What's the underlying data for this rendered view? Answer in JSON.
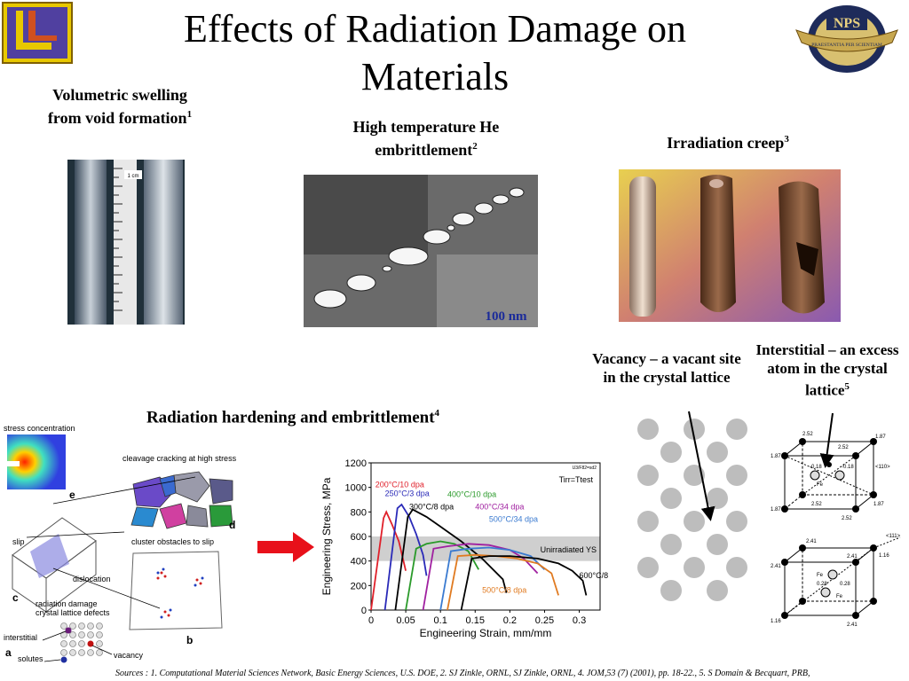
{
  "title": "Effects of Radiation Damage on Materials",
  "captions": {
    "swelling": "Volumetric swelling from void formation",
    "swelling_ref": "1",
    "he_embrittlement": "High temperature He embrittlement",
    "he_ref": "2",
    "creep": "Irradiation creep",
    "creep_ref": "3",
    "hardening": "Radiation hardening and embrittlement",
    "hardening_ref": "4",
    "vacancy": "Vacancy – a vacant site in the crystal lattice",
    "interstitial": "Interstitial – an excess atom in the crystal lattice",
    "interstitial_ref": "5"
  },
  "images": {
    "swelling_scale": "1 cm",
    "tem_scale": "100 nm"
  },
  "logos": {
    "nps_text": "NPS",
    "nps_motto": "PRAESTANTIA PER SCIENTIAM"
  },
  "schematic": {
    "stress_concentration": "stress concentration",
    "cleavage": "cleavage cracking at high stress",
    "slip": "slip",
    "cluster": "cluster obstacles to slip",
    "dislocation": "dislocation",
    "defects": "radiation damage crystal lattice defects",
    "interstitial": "interstitial",
    "solutes": "solutes",
    "vacancy": "vacancy",
    "labels": [
      "a",
      "b",
      "c",
      "d",
      "e"
    ]
  },
  "lattice_labels": {
    "top": [
      "2.52",
      "1.87",
      "2.52",
      "1.87",
      "-0.18",
      "Fe",
      "-0.18",
      "<110>",
      "1.87",
      "2.52",
      "1.87",
      "2.52"
    ],
    "bottom_dir": "<111>",
    "bottom": [
      "2.41",
      "2.41",
      "1.16",
      "Fe",
      "0.28",
      "0.28",
      "Fe",
      "2.41",
      "1.16",
      "2.41"
    ]
  },
  "chart_data": {
    "type": "line",
    "ylabel": "Engineering Stress, MPa",
    "xlabel": "Engineering Strain, mm/mm",
    "ylim": [
      0,
      1200
    ],
    "xlim": [
      0,
      0.33
    ],
    "yticks": [
      0,
      200,
      400,
      600,
      800,
      1000,
      1200
    ],
    "xticks": [
      "0",
      "0.05",
      "0.1",
      "0.15",
      "0.2",
      "0.25",
      "0.3"
    ],
    "corner_label": "U3/F82=sd2",
    "tirr_label": "Tirr=Ttest",
    "band_label": "Unirradiated YS",
    "band": [
      400,
      600
    ],
    "series": [
      {
        "name": "200°C/10 dpa",
        "color": "#e0202a",
        "x": [
          0.0,
          0.018,
          0.022,
          0.03,
          0.04,
          0.05
        ],
        "y": [
          0,
          750,
          800,
          700,
          560,
          320
        ]
      },
      {
        "name": "250°C/3 dpa",
        "color": "#2a2ab8",
        "x": [
          0.02,
          0.038,
          0.044,
          0.055,
          0.065,
          0.075,
          0.08
        ],
        "y": [
          0,
          830,
          860,
          760,
          620,
          450,
          280
        ]
      },
      {
        "name": "300°C/8 dpa",
        "color": "#000000",
        "x": [
          0.035,
          0.053,
          0.06,
          0.08,
          0.1,
          0.13,
          0.16,
          0.19,
          0.195
        ],
        "y": [
          0,
          760,
          820,
          760,
          680,
          560,
          420,
          250,
          140
        ]
      },
      {
        "name": "400°C/10 dpa",
        "color": "#2a9a2a",
        "x": [
          0.05,
          0.065,
          0.08,
          0.1,
          0.12,
          0.14,
          0.155
        ],
        "y": [
          0,
          500,
          540,
          560,
          540,
          480,
          330
        ]
      },
      {
        "name": "400°C/34 dpa",
        "color": "#a020a0",
        "x": [
          0.075,
          0.09,
          0.11,
          0.14,
          0.17,
          0.2,
          0.22,
          0.24
        ],
        "y": [
          0,
          500,
          520,
          540,
          530,
          490,
          420,
          300
        ]
      },
      {
        "name": "500°C/34 dpa",
        "color": "#3a7ad0",
        "x": [
          0.1,
          0.115,
          0.14,
          0.17,
          0.2,
          0.23,
          0.25
        ],
        "y": [
          0,
          480,
          500,
          510,
          490,
          440,
          330
        ]
      },
      {
        "name": "500°C/8 dpa",
        "color": "#e07a20",
        "x": [
          0.11,
          0.125,
          0.15,
          0.18,
          0.21,
          0.24,
          0.26,
          0.27
        ],
        "y": [
          0,
          440,
          450,
          440,
          420,
          380,
          300,
          120
        ]
      },
      {
        "name": "600°C/8 dpa",
        "color": "#000000",
        "x": [
          0.13,
          0.145,
          0.17,
          0.2,
          0.24,
          0.27,
          0.29,
          0.305,
          0.31
        ],
        "y": [
          0,
          420,
          440,
          440,
          420,
          380,
          320,
          240,
          120
        ]
      }
    ]
  },
  "sources": "Sources : 1. Computational Material Sciences Network, Basic Energy Sciences, U.S. DOE, 2. SJ Zinkle, ORNL, SJ Zinkle, ORNL, 4. JOM,53 (7) (2001), pp. 18-22., 5. S Domain & Becquart, PRB,"
}
